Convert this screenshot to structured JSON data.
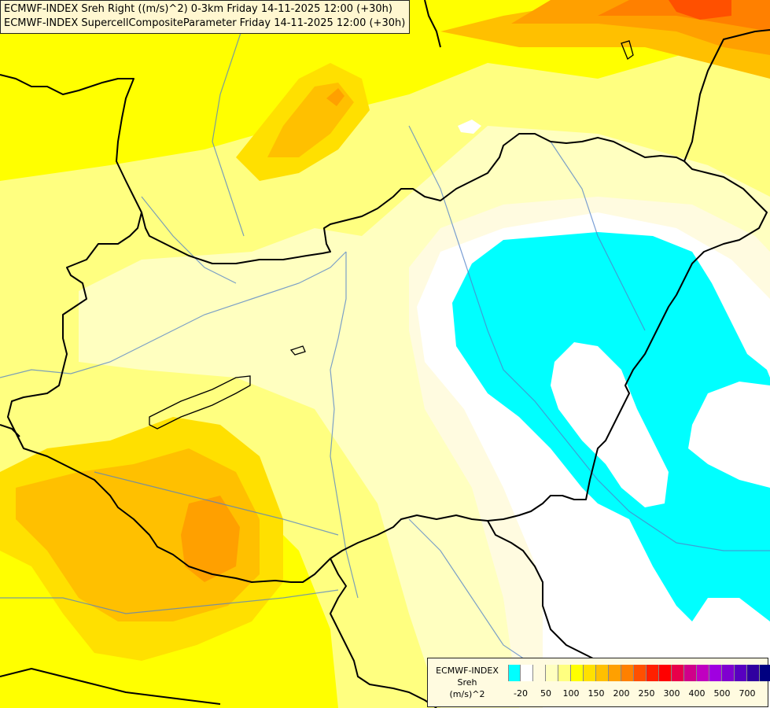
{
  "header": {
    "line1": "ECMWF-INDEX Sreh Right ((m/s)^2) 0-3km Friday 14-11-2025 12:00 (+30h)",
    "line2": "ECMWF-INDEX SupercellCompositeParameter Friday 14-11-2025 12:00 (+30h)"
  },
  "legend": {
    "title1": "ECMWF-INDEX",
    "title2": "Sreh",
    "unit": "(m/s)^2",
    "colors": [
      "#00ffff",
      "#ffffff",
      "#fffbe0",
      "#ffffc0",
      "#ffff80",
      "#ffff00",
      "#ffe000",
      "#ffc000",
      "#ffa000",
      "#ff8000",
      "#ff5000",
      "#ff2000",
      "#ff0000",
      "#e8004a",
      "#d0008a",
      "#c000c0",
      "#a000e0",
      "#8000d0",
      "#5800c0",
      "#3000a0",
      "#000080"
    ],
    "ticks": [
      {
        "label": "-20",
        "index": 1
      },
      {
        "label": "50",
        "index": 3
      },
      {
        "label": "100",
        "index": 5
      },
      {
        "label": "150",
        "index": 7
      },
      {
        "label": "200",
        "index": 9
      },
      {
        "label": "250",
        "index": 11
      },
      {
        "label": "300",
        "index": 13
      },
      {
        "label": "400",
        "index": 15
      },
      {
        "label": "500",
        "index": 17
      },
      {
        "label": "700",
        "index": 19
      }
    ]
  }
}
